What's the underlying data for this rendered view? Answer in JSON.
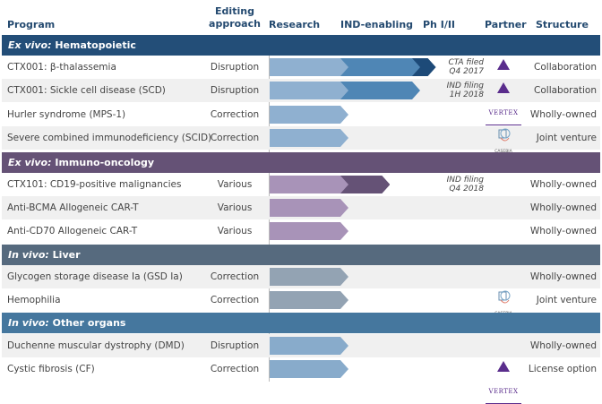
{
  "header": {
    "program": "Program",
    "editing_line1": "Editing",
    "editing_line2": "approach",
    "research": "Research",
    "ind": "IND-enabling",
    "ph": "Ph I/II",
    "partner": "Partner",
    "structure": "Structure"
  },
  "stages": [
    "Research",
    "IND-enabling",
    "Ph I/II"
  ],
  "sections": [
    {
      "prefix": "Ex vivo:",
      "title": " Hematopoietic",
      "color": "#234e78",
      "stage_colors": [
        "#8fb0d0",
        "#4f86b5",
        "#1d4a78"
      ],
      "rows": [
        {
          "program": "CTX001: β-thalassemia",
          "approach": "Disruption",
          "progress": 2.22,
          "note1": "CTA filed",
          "note2": "Q4 2017",
          "partner": "vertex",
          "partner_text": "VERTEX",
          "structure": "Collaboration"
        },
        {
          "program": "CTX001: Sickle cell disease (SCD)",
          "approach": "Disruption",
          "progress": 2.0,
          "note1": "IND filing",
          "note2": "1H 2018",
          "partner": "vertex",
          "partner_text": "VERTEX",
          "structure": "Collaboration"
        },
        {
          "program": "Hurler syndrome (MPS-1)",
          "approach": "Correction",
          "progress": 1.0,
          "structure": "Wholly-owned"
        },
        {
          "program": "Severe combined immunodeficiency (SCID)",
          "approach": "Correction",
          "progress": 1.0,
          "partner": "casebia",
          "partner_text": "CASEBIA",
          "structure": "Joint venture"
        }
      ]
    },
    {
      "prefix": "Ex vivo:",
      "title": " Immuno-oncology",
      "color": "#655276",
      "stage_colors": [
        "#a893b8",
        "#655276",
        "#4a3a5c"
      ],
      "rows": [
        {
          "program": "CTX101: CD19-positive malignancies",
          "approach": "Various",
          "progress": 1.58,
          "note1": "IND filing",
          "note2": "Q4 2018",
          "structure": "Wholly-owned"
        },
        {
          "program": "Anti-BCMA Allogeneic CAR-T",
          "approach": "Various",
          "progress": 1.0,
          "structure": "Wholly-owned"
        },
        {
          "program": "Anti-CD70 Allogeneic CAR-T",
          "approach": "Various",
          "progress": 1.0,
          "structure": "Wholly-owned"
        }
      ]
    },
    {
      "prefix": "In vivo:",
      "title": " Liver",
      "color": "#566a7e",
      "stage_colors": [
        "#93a3b3",
        "#566a7e",
        "#3e4f60"
      ],
      "rows": [
        {
          "program": "Glycogen storage disease Ia (GSD Ia)",
          "approach": "Correction",
          "progress": 1.0,
          "structure": "Wholly-owned"
        },
        {
          "program": "Hemophilia",
          "approach": "Correction",
          "progress": 1.0,
          "partner": "casebia",
          "partner_text": "CASEBIA",
          "structure": "Joint venture"
        }
      ]
    },
    {
      "prefix": "In vivo:",
      "title": " Other organs",
      "color": "#45779e",
      "stage_colors": [
        "#88abcb",
        "#45779e",
        "#2f5a7d"
      ],
      "rows": [
        {
          "program": "Duchenne muscular dystrophy (DMD)",
          "approach": "Disruption",
          "progress": 1.0,
          "structure": "Wholly-owned"
        },
        {
          "program": "Cystic fibrosis (CF)",
          "approach": "Correction",
          "progress": 1.0,
          "partner": "vertex",
          "partner_text": "VERTEX",
          "structure": "License option"
        }
      ]
    }
  ]
}
